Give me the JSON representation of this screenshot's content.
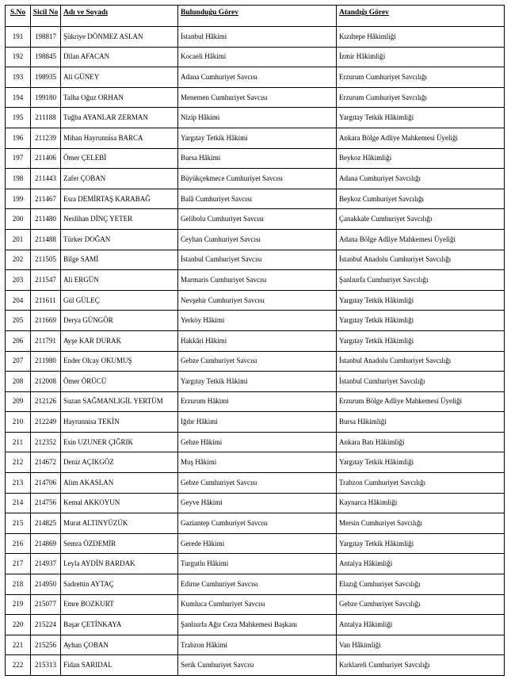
{
  "table": {
    "header": [
      "S.No",
      "Sicil No",
      "Adı ve Soyadı",
      "Bulunduğu Görev",
      "Atandığı Görev"
    ],
    "rows": [
      [
        "191",
        "198817",
        "Şükriye DÖNMEZ ASLAN",
        "İstanbul Hâkimi",
        "Kızıltepe Hâkimliği"
      ],
      [
        "192",
        "198845",
        "Dilan AFACAN",
        "Kocaeli Hâkimi",
        "İzmir Hâkimliği"
      ],
      [
        "193",
        "198935",
        "Ali GÜNEY",
        "Adana Cumhuriyet Savcısı",
        "Erzurum Cumhuriyet Savcılığı"
      ],
      [
        "194",
        "199180",
        "Talha Oğuz ORHAN",
        "Menemen Cumhuriyet Savcısı",
        "Erzurum Cumhuriyet Savcılığı"
      ],
      [
        "195",
        "211188",
        "Tuğba AYANLAR ZERMAN",
        "Nizip Hâkimi",
        "Yargıtay Tetkik Hâkimliği"
      ],
      [
        "196",
        "211239",
        "Mihan Hayrunnisa BARCA",
        "Yargıtay Tetkik Hâkimi",
        "Ankara Bölge Adliye Mahkemesi Üyeliği"
      ],
      [
        "197",
        "211406",
        "Ömer ÇELEBİ",
        "Bursa Hâkimi",
        "Beykoz Hâkimliği"
      ],
      [
        "198",
        "211443",
        "Zafer ÇOBAN",
        "Büyükçekmece Cumhuriyet Savcısı",
        "Adana Cumhuriyet Savcılığı"
      ],
      [
        "199",
        "211467",
        "Esra DEMİRTAŞ KARABAĞ",
        "Balâ Cumhuriyet Savcısı",
        "Beykoz Cumhuriyet Savcılığı"
      ],
      [
        "200",
        "211480",
        "Neslihan DİNÇ YETER",
        "Gelibolu Cumhuriyet Savcısı",
        "Çanakkale Cumhuriyet Savcılığı"
      ],
      [
        "201",
        "211488",
        "Türker DOĞAN",
        "Ceyhan Cumhuriyet Savcısı",
        "Adana Bölge Adliye Mahkemesi Üyeliği"
      ],
      [
        "202",
        "211505",
        "Bilge SAMİ",
        "İstanbul Cumhuriyet Savcısı",
        "İstanbul Anadolu Cumhuriyet Savcılığı"
      ],
      [
        "203",
        "211547",
        "Ali ERGÜN",
        "Marmaris Cumhuriyet Savcısı",
        "Şanlıurfa Cumhuriyet Savcılığı"
      ],
      [
        "204",
        "211611",
        "Gül GÜLEÇ",
        "Nevşehir Cumhuriyet Savcısı",
        "Yargıtay Tetkik Hâkimliği"
      ],
      [
        "205",
        "211669",
        "Derya GÜNGÖR",
        "Yerköy Hâkimi",
        "Yargıtay Tetkik Hâkimliği"
      ],
      [
        "206",
        "211791",
        "Ayşe KAR DURAK",
        "Hakkâri Hâkimi",
        "Yargıtay Tetkik Hâkimliği"
      ],
      [
        "207",
        "211980",
        "Ender Olcay OKUMUŞ",
        "Gebze Cumhuriyet Savcısı",
        "İstanbul Anadolu Cumhuriyet Savcılığı"
      ],
      [
        "208",
        "212008",
        "Ömer ÖRÜCÜ",
        "Yargıtay Tetkik Hâkimi",
        "İstanbul Cumhuriyet Savcılığı"
      ],
      [
        "209",
        "212126",
        "Suzan SAĞMANLIGİL YERTÜM",
        "Erzurum Hâkimi",
        "Erzurum Bölge Adliye Mahkemesi Üyeliği"
      ],
      [
        "210",
        "212249",
        "Hayrunnisa TEKİN",
        "Iğdır Hâkimi",
        "Bursa Hâkimliği"
      ],
      [
        "211",
        "212352",
        "Esin UZUNER ÇIĞRIK",
        "Gebze Hâkimi",
        "Ankara Batı Hâkimliği"
      ],
      [
        "212",
        "214672",
        "Deniz AÇIKGÖZ",
        "Muş Hâkimi",
        "Yargıtay Tetkik Hâkimliği"
      ],
      [
        "213",
        "214706",
        "Alim AKASLAN",
        "Gebze Cumhuriyet Savcısı",
        "Trabzon Cumhuriyet Savcılığı"
      ],
      [
        "214",
        "214756",
        "Kemal AKKOYUN",
        "Geyve Hâkimi",
        "Kaynarca Hâkimliği"
      ],
      [
        "215",
        "214825",
        "Murat ALTINYÜZÜK",
        "Gaziantep Cumhuriyet Savcısı",
        "Mersin Cumhuriyet Savcılığı"
      ],
      [
        "216",
        "214869",
        "Semra ÖZDEMİR",
        "Gerede Hâkimi",
        "Yargıtay Tetkik Hâkimliği"
      ],
      [
        "217",
        "214937",
        "Leyla AYDİN BARDAK",
        "Turgutlu Hâkimi",
        "Antalya Hâkimliği"
      ],
      [
        "218",
        "214950",
        "Sadrettin AYTAÇ",
        "Edirne Cumhuriyet Savcısı",
        "Elazığ Cumhuriyet Savcılığı"
      ],
      [
        "219",
        "215077",
        "Emre BOZKURT",
        "Kumluca Cumhuriyet Savcısı",
        "Gebze Cumhuriyet Savcılığı"
      ],
      [
        "220",
        "215224",
        "Başar ÇETİNKAYA",
        "Şanlıurfa Ağır Ceza Mahkemesi Başkanı",
        "Antalya Hâkimliği"
      ],
      [
        "221",
        "215256",
        "Ayhan ÇOBAN",
        "Trabzon Hâkimi",
        "Van Hâkimliği"
      ],
      [
        "222",
        "215313",
        "Fidan SARIDAL",
        "Serik Cumhuriyet Savcısı",
        "Kırklareli Cumhuriyet Savcılığı"
      ]
    ]
  }
}
